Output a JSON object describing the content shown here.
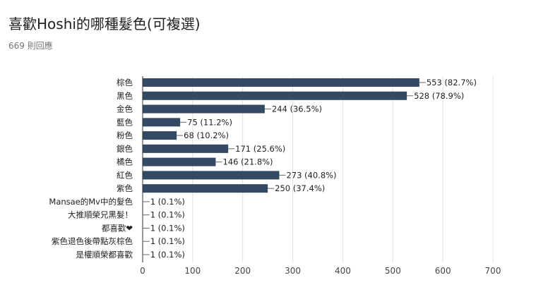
{
  "header": {
    "title": "喜歡Hoshi的哪種髮色(可複選)",
    "response_count": "669 則回應"
  },
  "colors": {
    "bar": "#344a62",
    "grid": "#e0e0e0",
    "axis": "#333333",
    "text": "#222222",
    "tick": "#444444"
  },
  "chart_data": {
    "type": "bar",
    "orientation": "horizontal",
    "title": "喜歡Hoshi的哪種髮色(可複選)",
    "xlim": [
      0,
      700
    ],
    "x_ticks": [
      0,
      100,
      200,
      300,
      400,
      500,
      600,
      700
    ],
    "grid": true,
    "categories": [
      "棕色",
      "黑色",
      "金色",
      "藍色",
      "粉色",
      "銀色",
      "橘色",
      "紅色",
      "紫色",
      "Mansae的Mv中的髮色",
      "大推順榮兄黑髮！",
      "都喜歡❤",
      "紫色退色後帶點灰棕色",
      "是權順榮都喜歡"
    ],
    "values": [
      553,
      528,
      244,
      75,
      68,
      171,
      146,
      273,
      250,
      1,
      1,
      1,
      1,
      1
    ],
    "data_labels": [
      "553 (82.7%)",
      "528 (78.9%)",
      "244 (36.5%)",
      "75 (11.2%)",
      "68 (10.2%)",
      "171 (25.6%)",
      "146 (21.8%)",
      "273 (40.8%)",
      "250 (37.4%)",
      "1 (0.1%)",
      "1 (0.1%)",
      "1 (0.1%)",
      "1 (0.1%)",
      "1 (0.1%)"
    ]
  }
}
